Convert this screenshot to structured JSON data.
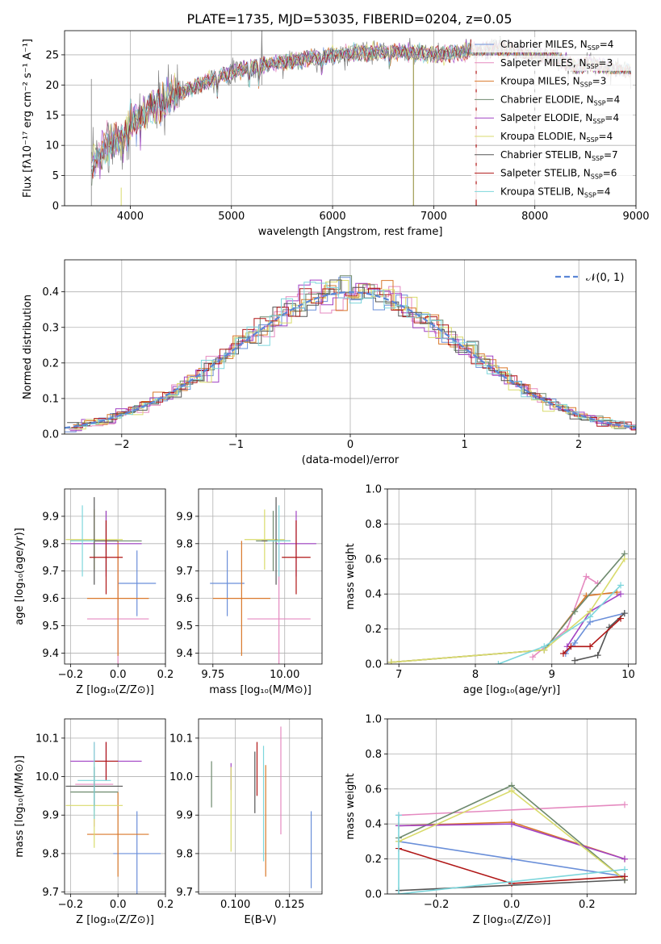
{
  "colors": {
    "series": [
      "#6a8fd9",
      "#e58ac0",
      "#d9782a",
      "#6e8a6e",
      "#a142c4",
      "#d9db6c",
      "#555555",
      "#b01616",
      "#7dd6dc"
    ],
    "gauss": "#5b86d6",
    "spectrum_data": "#808080"
  },
  "chart_data": [
    {
      "id": "spectrum",
      "type": "line",
      "title": "PLATE=1735, MJD=53035, FIBERID=0204, z=0.05",
      "xlabel": "wavelength [Angstrom, rest frame]",
      "ylabel": "Flux [fλ10⁻¹⁷ erg cm⁻² s⁻¹ A⁻¹]",
      "xlim": [
        3350,
        9000
      ],
      "ylim": [
        0,
        29
      ],
      "xticks": [
        "4000",
        "5000",
        "6000",
        "7000",
        "8000",
        "9000"
      ],
      "yticks": [
        "0",
        "5",
        "10",
        "15",
        "20",
        "25"
      ],
      "grid": true,
      "legend": "top-right",
      "continuum": {
        "x": [
          3620,
          3700,
          3800,
          3900,
          4000,
          4100,
          4200,
          4300,
          4400,
          4600,
          4800,
          5000,
          5200,
          5400,
          5600,
          5800,
          6000,
          6200,
          6400,
          6600,
          6800,
          7000,
          7200,
          7400,
          7600,
          7800,
          8000,
          8200,
          8400,
          8600,
          8800,
          8950
        ],
        "y": [
          6.5,
          8.5,
          10.5,
          11.5,
          13.5,
          15.0,
          16.0,
          17.5,
          18.0,
          19.5,
          21.0,
          22.0,
          23.0,
          23.5,
          24.0,
          24.5,
          25.0,
          25.3,
          25.5,
          25.6,
          25.3,
          25.0,
          25.3,
          25.7,
          26.0,
          25.5,
          24.8,
          24.5,
          23.0,
          23.5,
          22.5,
          22.5
        ]
      },
      "series": [
        {
          "name": "Chabrier MILES, N",
          "sub": "SSP",
          "suffix": "=4"
        },
        {
          "name": "Salpeter MILES, N",
          "sub": "SSP",
          "suffix": "=3"
        },
        {
          "name": "Kroupa MILES, N",
          "sub": "SSP",
          "suffix": "=3"
        },
        {
          "name": "Chabrier ELODIE, N",
          "sub": "SSP",
          "suffix": "=4"
        },
        {
          "name": "Salpeter ELODIE, N",
          "sub": "SSP",
          "suffix": "=4"
        },
        {
          "name": "Kroupa ELODIE, N",
          "sub": "SSP",
          "suffix": "=4"
        },
        {
          "name": "Chabrier STELIB, N",
          "sub": "SSP",
          "suffix": "=7"
        },
        {
          "name": "Salpeter STELIB, N",
          "sub": "SSP",
          "suffix": "=6"
        },
        {
          "name": "Kroupa STELIB, N",
          "sub": "SSP",
          "suffix": "=4"
        }
      ]
    },
    {
      "id": "residuals",
      "type": "line",
      "xlabel": "(data-model)/error",
      "ylabel": "Normed distribution",
      "xlim": [
        -2.5,
        2.5
      ],
      "ylim": [
        0,
        0.49
      ],
      "xticks": [
        "−2",
        "−1",
        "0",
        "1",
        "2"
      ],
      "yticks": [
        "0.0",
        "0.1",
        "0.2",
        "0.3",
        "0.4"
      ],
      "grid": true,
      "legend": "top-right",
      "gauss_label": "𝒩(0, 1)",
      "bin_width": 0.1
    },
    {
      "id": "age-vs-z",
      "type": "scatter",
      "xlabel": "Z [log₁₀(Z/Z⊙)]",
      "ylabel": "age  [log₁₀(age/yr)]",
      "xlim": [
        -0.225,
        0.2
      ],
      "ylim": [
        9.36,
        10.0
      ],
      "xticks": [
        "−0.2",
        "0.0",
        "0.2"
      ],
      "yticks": [
        "9.4",
        "9.5",
        "9.6",
        "9.7",
        "9.8",
        "9.9"
      ],
      "grid": true,
      "points": [
        {
          "x": 0.08,
          "xerr": 0.08,
          "y": 9.655,
          "yerr": 0.12
        },
        {
          "x": 0.0,
          "xerr": 0.13,
          "y": 9.525,
          "yerr": 0.27
        },
        {
          "x": 0.0,
          "xerr": 0.13,
          "y": 9.6,
          "yerr": 0.21
        },
        {
          "x": -0.05,
          "xerr": 0.15,
          "y": 9.81,
          "yerr": 0.11
        },
        {
          "x": -0.05,
          "xerr": 0.15,
          "y": 9.8,
          "yerr": 0.12
        },
        {
          "x": -0.1,
          "xerr": 0.12,
          "y": 9.815,
          "yerr": 0.11
        },
        {
          "x": -0.1,
          "xerr": 0.1,
          "y": 9.81,
          "yerr": 0.16
        },
        {
          "x": -0.05,
          "xerr": 0.07,
          "y": 9.75,
          "yerr": 0.135
        },
        {
          "x": -0.15,
          "xerr": 0.05,
          "y": 9.81,
          "yerr": 0.13
        }
      ]
    },
    {
      "id": "age-vs-mass",
      "type": "scatter",
      "xlabel": "mass [log₁₀(M/M⊙)]",
      "xlim": [
        9.7,
        10.13
      ],
      "ylim": [
        9.36,
        10.0
      ],
      "xticks": [
        "9.75",
        "10.00"
      ],
      "yticks": [
        "9.4",
        "9.5",
        "9.6",
        "9.7",
        "9.8",
        "9.9"
      ],
      "grid": true,
      "points": [
        {
          "x": 9.8,
          "xerr": 0.06,
          "y": 9.655,
          "yerr": 0.12
        },
        {
          "x": 9.98,
          "xerr": 0.11,
          "y": 9.525,
          "yerr": 0.27
        },
        {
          "x": 9.85,
          "xerr": 0.1,
          "y": 9.6,
          "yerr": 0.21
        },
        {
          "x": 9.96,
          "xerr": 0.06,
          "y": 9.81,
          "yerr": 0.11
        },
        {
          "x": 10.04,
          "xerr": 0.07,
          "y": 9.8,
          "yerr": 0.12
        },
        {
          "x": 9.93,
          "xerr": 0.07,
          "y": 9.815,
          "yerr": 0.11
        },
        {
          "x": 9.97,
          "xerr": 0.05,
          "y": 9.81,
          "yerr": 0.16
        },
        {
          "x": 10.04,
          "xerr": 0.05,
          "y": 9.75,
          "yerr": 0.135
        },
        {
          "x": 9.98,
          "xerr": 0.04,
          "y": 9.81,
          "yerr": 0.13
        }
      ]
    },
    {
      "id": "weight-vs-age",
      "type": "line",
      "xlabel": "age  [log₁₀(age/yr)]",
      "ylabel": "mass weight",
      "xlim": [
        6.85,
        10.1
      ],
      "ylim": [
        0,
        1.0
      ],
      "xticks": [
        "7",
        "8",
        "9",
        "10"
      ],
      "yticks": [
        "0.0",
        "0.2",
        "0.4",
        "0.6",
        "0.8",
        "1.0"
      ],
      "grid": true,
      "lines": [
        {
          "x": [
            9.18,
            9.3,
            9.5,
            9.95
          ],
          "y": [
            0.06,
            0.12,
            0.24,
            0.29
          ]
        },
        {
          "x": [
            8.75,
            9.2,
            9.45,
            9.6
          ],
          "y": [
            0.04,
            0.2,
            0.5,
            0.46
          ]
        },
        {
          "x": [
            6.9,
            8.9,
            9.45,
            9.85
          ],
          "y": [
            0.01,
            0.08,
            0.39,
            0.41
          ]
        },
        {
          "x": [
            6.9,
            8.9,
            9.3,
            9.95
          ],
          "y": [
            0.01,
            0.08,
            0.3,
            0.63
          ]
        },
        {
          "x": [
            9.2,
            9.5,
            9.9
          ],
          "y": [
            0.1,
            0.3,
            0.4
          ]
        },
        {
          "x": [
            6.9,
            8.9,
            9.5,
            9.95
          ],
          "y": [
            0.01,
            0.08,
            0.3,
            0.6
          ]
        },
        {
          "x": [
            9.3,
            9.6,
            9.75,
            9.95
          ],
          "y": [
            0.02,
            0.05,
            0.21,
            0.29
          ]
        },
        {
          "x": [
            9.15,
            9.25,
            9.5,
            9.9
          ],
          "y": [
            0.06,
            0.1,
            0.1,
            0.26
          ]
        },
        {
          "x": [
            8.3,
            8.9,
            9.5,
            9.9
          ],
          "y": [
            0.0,
            0.1,
            0.27,
            0.45
          ]
        }
      ]
    },
    {
      "id": "mass-vs-z",
      "type": "scatter",
      "xlabel": "Z [log₁₀(Z/Z⊙)]",
      "ylabel": "mass [log₁₀(M/M⊙)]",
      "xlim": [
        -0.225,
        0.2
      ],
      "ylim": [
        9.695,
        10.15
      ],
      "xticks": [
        "−0.2",
        "0.0",
        "0.2"
      ],
      "yticks": [
        "9.7",
        "9.8",
        "9.9",
        "10.0",
        "10.1"
      ],
      "grid": true,
      "points": [
        {
          "x": 0.08,
          "xerr": 0.1,
          "y": 9.8,
          "yerr": 0.11
        },
        {
          "x": -0.1,
          "xerr": 0.08,
          "y": 9.98,
          "yerr": 0.11
        },
        {
          "x": 0.0,
          "xerr": 0.13,
          "y": 9.85,
          "yerr": 0.11
        },
        {
          "x": -0.1,
          "xerr": 0.1,
          "y": 9.96,
          "yerr": 0.05
        },
        {
          "x": -0.05,
          "xerr": 0.15,
          "y": 10.04,
          "yerr": 0.05
        },
        {
          "x": -0.1,
          "xerr": 0.12,
          "y": 9.925,
          "yerr": 0.11
        },
        {
          "x": -0.1,
          "xerr": 0.12,
          "y": 9.975,
          "yerr": 0.05
        },
        {
          "x": -0.05,
          "xerr": 0.05,
          "y": 10.04,
          "yerr": 0.05
        },
        {
          "x": -0.1,
          "xerr": 0.07,
          "y": 9.99,
          "yerr": 0.1
        }
      ]
    },
    {
      "id": "mass-vs-ebv",
      "type": "scatter",
      "xlabel": "E(B-V)",
      "xlim": [
        0.083,
        0.14
      ],
      "ylim": [
        9.695,
        10.15
      ],
      "xticks": [
        "0.100",
        "0.125"
      ],
      "yticks": [
        "9.7",
        "9.8",
        "9.9",
        "10.0",
        "10.1"
      ],
      "grid": true,
      "points": [
        {
          "x": 0.135,
          "xerr": 0,
          "y": 9.81,
          "yerr": 0.1
        },
        {
          "x": 0.121,
          "xerr": 0,
          "y": 9.99,
          "yerr": 0.14
        },
        {
          "x": 0.114,
          "xerr": 0,
          "y": 9.885,
          "yerr": 0.145
        },
        {
          "x": 0.089,
          "xerr": 0,
          "y": 9.98,
          "yerr": 0.06
        },
        {
          "x": 0.098,
          "xerr": 0,
          "y": 10.0,
          "yerr": 0.035
        },
        {
          "x": 0.098,
          "xerr": 0,
          "y": 9.915,
          "yerr": 0.11
        },
        {
          "x": 0.109,
          "xerr": 0,
          "y": 9.985,
          "yerr": 0.08
        },
        {
          "x": 0.11,
          "xerr": 0,
          "y": 10.02,
          "yerr": 0.07
        },
        {
          "x": 0.113,
          "xerr": 0,
          "y": 9.93,
          "yerr": 0.15
        }
      ]
    },
    {
      "id": "weight-vs-z",
      "type": "line",
      "xlabel": "Z [log₁₀(Z/Z⊙)]",
      "ylabel": "mass weight",
      "xlim": [
        -0.33,
        0.33
      ],
      "ylim": [
        0,
        1.0
      ],
      "xticks": [
        "−0.2",
        "0.0",
        "0.2"
      ],
      "yticks": [
        "0.0",
        "0.2",
        "0.4",
        "0.6",
        "0.8",
        "1.0"
      ],
      "grid": true,
      "lines": [
        {
          "x": [
            -0.3,
            0.0,
            0.3
          ],
          "y": [
            0.3,
            0.2,
            0.1
          ]
        },
        {
          "x": [
            -0.3,
            0.3
          ],
          "y": [
            0.45,
            0.51
          ]
        },
        {
          "x": [
            -0.3,
            0.0,
            0.3
          ],
          "y": [
            0.39,
            0.41,
            0.2
          ]
        },
        {
          "x": [
            -0.3,
            0.0,
            0.3
          ],
          "y": [
            0.32,
            0.62,
            0.08
          ]
        },
        {
          "x": [
            -0.3,
            0.0,
            0.3
          ],
          "y": [
            0.39,
            0.4,
            0.2
          ]
        },
        {
          "x": [
            -0.3,
            0.0,
            0.3
          ],
          "y": [
            0.3,
            0.59,
            0.08
          ]
        },
        {
          "x": [
            -0.3,
            0.3
          ],
          "y": [
            0.02,
            0.08
          ]
        },
        {
          "x": [
            -0.3,
            0.0,
            0.3
          ],
          "y": [
            0.26,
            0.06,
            0.1
          ]
        },
        {
          "x": [
            -0.3,
            -0.3,
            0.0,
            0.3
          ],
          "y": [
            0.45,
            0.0,
            0.07,
            0.14
          ]
        }
      ]
    }
  ]
}
